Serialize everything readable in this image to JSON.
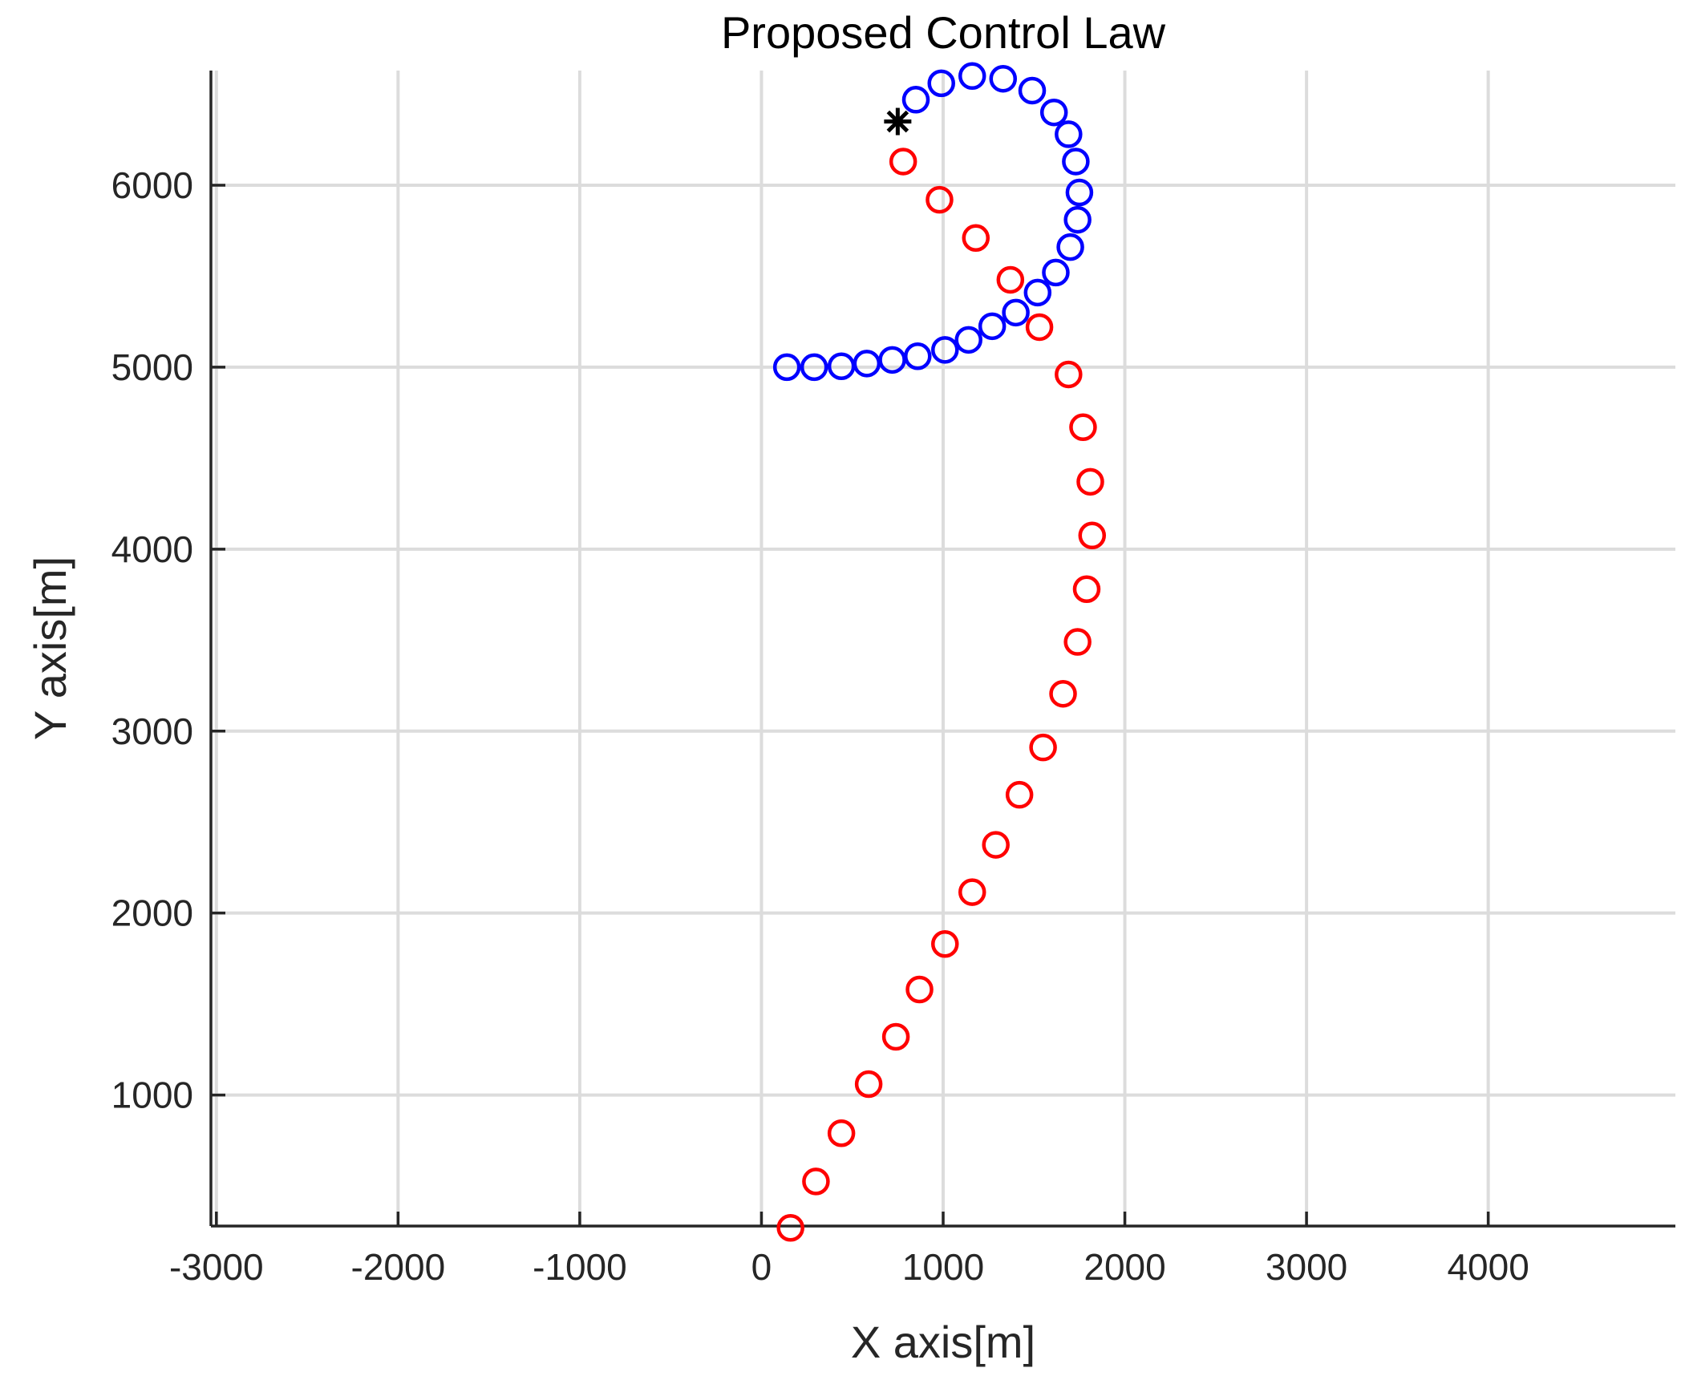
{
  "chart_data": {
    "type": "scatter",
    "title": "Proposed Control Law",
    "xlabel": "X axis[m]",
    "ylabel": "Y axis[m]",
    "xlim": [
      -3030,
      5030
    ],
    "ylim": [
      280,
      6630
    ],
    "xticks": [
      -3000,
      -2000,
      -1000,
      0,
      1000,
      2000,
      3000,
      4000
    ],
    "yticks": [
      1000,
      2000,
      3000,
      4000,
      5000,
      6000
    ],
    "grid": true,
    "legend": "none",
    "series": [
      {
        "color": "#0000ff",
        "marker": "circle",
        "points": [
          [
            140,
            5000
          ],
          [
            290,
            5000
          ],
          [
            440,
            5005
          ],
          [
            580,
            5020
          ],
          [
            720,
            5040
          ],
          [
            860,
            5060
          ],
          [
            1010,
            5095
          ],
          [
            1140,
            5150
          ],
          [
            1270,
            5225
          ],
          [
            1400,
            5300
          ],
          [
            1520,
            5410
          ],
          [
            1620,
            5520
          ],
          [
            1700,
            5660
          ],
          [
            1740,
            5810
          ],
          [
            1750,
            5960
          ],
          [
            1730,
            6130
          ],
          [
            1690,
            6280
          ],
          [
            1610,
            6400
          ],
          [
            1490,
            6520
          ],
          [
            1330,
            6585
          ],
          [
            1160,
            6600
          ],
          [
            990,
            6560
          ],
          [
            850,
            6470
          ]
        ]
      },
      {
        "color": "#ff0000",
        "marker": "circle",
        "points": [
          [
            160,
            270
          ],
          [
            300,
            525
          ],
          [
            440,
            790
          ],
          [
            590,
            1060
          ],
          [
            740,
            1320
          ],
          [
            870,
            1580
          ],
          [
            1010,
            1830
          ],
          [
            1160,
            2115
          ],
          [
            1290,
            2375
          ],
          [
            1420,
            2650
          ],
          [
            1550,
            2910
          ],
          [
            1660,
            3205
          ],
          [
            1740,
            3490
          ],
          [
            1790,
            3780
          ],
          [
            1820,
            4075
          ],
          [
            1810,
            4370
          ],
          [
            1770,
            4670
          ],
          [
            1690,
            4960
          ],
          [
            1530,
            5220
          ],
          [
            1370,
            5480
          ],
          [
            1180,
            5710
          ],
          [
            980,
            5920
          ],
          [
            780,
            6130
          ]
        ]
      },
      {
        "color": "#000000",
        "marker": "star",
        "points": [
          [
            750,
            6350
          ]
        ]
      }
    ]
  }
}
